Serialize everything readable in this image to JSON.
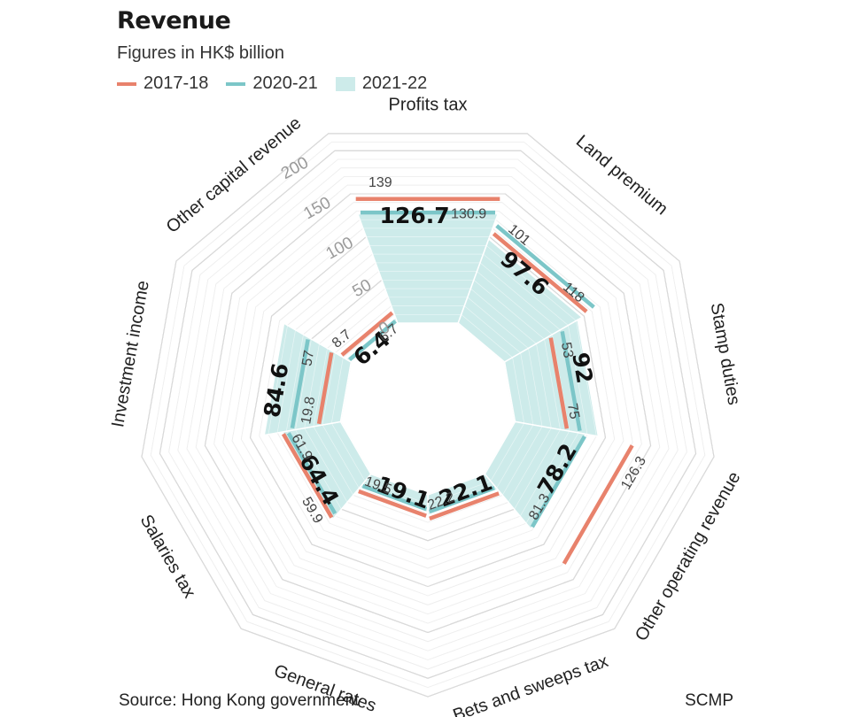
{
  "header": {
    "title": "Revenue",
    "subtitle": "Figures in HK$ billion"
  },
  "legend": [
    {
      "label": "2017-18",
      "kind": "line",
      "color": "#e8826c"
    },
    {
      "label": "2020-21",
      "kind": "line",
      "color": "#7cc6c8"
    },
    {
      "label": "2021-22",
      "kind": "fill",
      "color": "#cdebea"
    }
  ],
  "footer": {
    "source": "Source: Hong Kong government",
    "credit": "SCMP"
  },
  "chart_data": {
    "type": "radial bar",
    "title": "Revenue",
    "subtitle": "Figures in HK$ billion",
    "unit": "HK$ billion",
    "scale_ticks": [
      "0",
      "50",
      "100",
      "150",
      "200"
    ],
    "scale_max": 220,
    "grid": true,
    "categories": [
      "Profits tax",
      "Land premium",
      "Stamp duties",
      "Other operating revenue",
      "Bets and sweeps tax",
      "General rates",
      "Salaries tax",
      "Investment income",
      "Other capital revenue"
    ],
    "series": [
      {
        "name": "2017-18",
        "values": [
          139,
          101,
          53,
          126.3,
          22.1,
          19.1,
          59.9,
          19.8,
          8.7
        ],
        "labels": [
          "139",
          "101",
          "53",
          "126.3",
          "",
          "",
          "59.9",
          "19.8",
          "8.7"
        ],
        "color": "#e8826c"
      },
      {
        "name": "2020-21",
        "values": [
          130.9,
          118,
          75,
          81.3,
          22.2,
          19.5,
          61.9,
          57,
          6.7
        ],
        "labels": [
          "130.9",
          "118",
          "75",
          "81.3",
          "22.2",
          "19.5",
          "61.9",
          "57",
          "6.7"
        ],
        "color": "#7cc6c8"
      },
      {
        "name": "2021-22",
        "values": [
          126.7,
          97.6,
          92,
          78.2,
          22.1,
          19.1,
          64.4,
          84.6,
          6.4
        ],
        "labels": [
          "126.7",
          "97.6",
          "92",
          "78.2",
          "22.1",
          "19.1",
          "64.4",
          "84.6",
          "6.4"
        ],
        "color": "#cdebea"
      }
    ]
  }
}
